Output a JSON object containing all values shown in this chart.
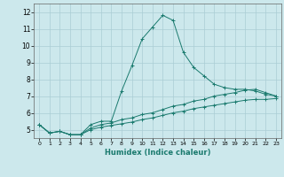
{
  "xlabel": "Humidex (Indice chaleur)",
  "background_color": "#cce8ec",
  "line_color": "#1a7a6e",
  "xlim": [
    -0.5,
    23.5
  ],
  "ylim": [
    4.5,
    12.5
  ],
  "xticks": [
    0,
    1,
    2,
    3,
    4,
    5,
    6,
    7,
    8,
    9,
    10,
    11,
    12,
    13,
    14,
    15,
    16,
    17,
    18,
    19,
    20,
    21,
    22,
    23
  ],
  "yticks": [
    5,
    6,
    7,
    8,
    9,
    10,
    11,
    12
  ],
  "grid_color": "#aacdd4",
  "series": [
    {
      "x": [
        0,
        1,
        2,
        3,
        4,
        5,
        6,
        7,
        8,
        9,
        10,
        11,
        12,
        13,
        14,
        15,
        16,
        17,
        18,
        19,
        20,
        21,
        22,
        23
      ],
      "y": [
        5.3,
        4.8,
        4.9,
        4.7,
        4.7,
        5.3,
        5.5,
        5.5,
        7.3,
        8.8,
        10.4,
        11.1,
        11.8,
        11.5,
        9.6,
        8.7,
        8.2,
        7.7,
        7.5,
        7.4,
        7.4,
        7.3,
        7.1,
        7.0
      ]
    },
    {
      "x": [
        0,
        1,
        2,
        3,
        4,
        5,
        6,
        7,
        8,
        9,
        10,
        11,
        12,
        13,
        14,
        15,
        16,
        17,
        18,
        19,
        20,
        21,
        22,
        23
      ],
      "y": [
        5.3,
        4.8,
        4.9,
        4.7,
        4.7,
        5.1,
        5.3,
        5.4,
        5.6,
        5.7,
        5.9,
        6.0,
        6.2,
        6.4,
        6.5,
        6.7,
        6.8,
        7.0,
        7.1,
        7.2,
        7.35,
        7.4,
        7.2,
        7.0
      ]
    },
    {
      "x": [
        0,
        1,
        2,
        3,
        4,
        5,
        6,
        7,
        8,
        9,
        10,
        11,
        12,
        13,
        14,
        15,
        16,
        17,
        18,
        19,
        20,
        21,
        22,
        23
      ],
      "y": [
        5.3,
        4.8,
        4.9,
        4.7,
        4.7,
        5.0,
        5.15,
        5.25,
        5.35,
        5.45,
        5.6,
        5.7,
        5.85,
        6.0,
        6.1,
        6.25,
        6.35,
        6.45,
        6.55,
        6.65,
        6.75,
        6.8,
        6.8,
        6.85
      ]
    }
  ]
}
